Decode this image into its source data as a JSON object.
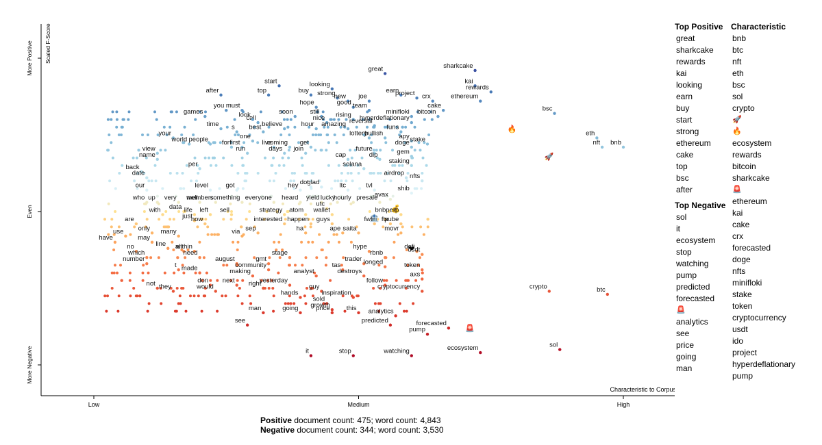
{
  "chart_data": {
    "type": "scatter",
    "y_axis_title": "Scaled F-Score",
    "y_ticks": [
      "More Positive",
      "Even",
      "More Negative"
    ],
    "x_axis_title": "Characteristic to Corpus",
    "x_ticks": [
      "Low",
      "Medium",
      "High"
    ],
    "xlim": [
      -0.2,
      1.2
    ],
    "ylim": [
      -0.2,
      1.05
    ],
    "color_scale": {
      "low": "#a50026",
      "mid": "#ffffbf",
      "high": "#313695"
    },
    "labeled_points": [
      {
        "term": "sharkcake",
        "x": 0.72,
        "y": 0.96
      },
      {
        "term": "kai",
        "x": 0.72,
        "y": 0.91
      },
      {
        "term": "rewards",
        "x": 0.75,
        "y": 0.89
      },
      {
        "term": "ethereum",
        "x": 0.73,
        "y": 0.86
      },
      {
        "term": "bsc",
        "x": 0.87,
        "y": 0.82
      },
      {
        "term": "🔥",
        "x": 0.79,
        "y": 0.77
      },
      {
        "term": "eth",
        "x": 0.95,
        "y": 0.74
      },
      {
        "term": "nft",
        "x": 0.96,
        "y": 0.71
      },
      {
        "term": "🚀",
        "x": 0.86,
        "y": 0.68
      },
      {
        "term": "bnb",
        "x": 1.0,
        "y": 0.71
      },
      {
        "term": "great",
        "x": 0.55,
        "y": 0.95
      },
      {
        "term": "start",
        "x": 0.35,
        "y": 0.91
      },
      {
        "term": "top",
        "x": 0.33,
        "y": 0.88
      },
      {
        "term": "after",
        "x": 0.24,
        "y": 0.88
      },
      {
        "term": "looking",
        "x": 0.45,
        "y": 0.9
      },
      {
        "term": "buy",
        "x": 0.41,
        "y": 0.88
      },
      {
        "term": "strong",
        "x": 0.46,
        "y": 0.87
      },
      {
        "term": "new",
        "x": 0.48,
        "y": 0.86
      },
      {
        "term": "earn",
        "x": 0.58,
        "y": 0.88
      },
      {
        "term": "project",
        "x": 0.61,
        "y": 0.87
      },
      {
        "term": "joe",
        "x": 0.52,
        "y": 0.86
      },
      {
        "term": "crx",
        "x": 0.64,
        "y": 0.86
      },
      {
        "term": "you",
        "x": 0.25,
        "y": 0.83
      },
      {
        "term": "must",
        "x": 0.28,
        "y": 0.83
      },
      {
        "term": "hope",
        "x": 0.42,
        "y": 0.84
      },
      {
        "term": "good",
        "x": 0.49,
        "y": 0.84
      },
      {
        "term": "team",
        "x": 0.52,
        "y": 0.83
      },
      {
        "term": "cake",
        "x": 0.66,
        "y": 0.83
      },
      {
        "term": "games",
        "x": 0.21,
        "y": 0.81
      },
      {
        "term": "call",
        "x": 0.31,
        "y": 0.79
      },
      {
        "term": "look",
        "x": 0.3,
        "y": 0.8
      },
      {
        "term": "soon",
        "x": 0.38,
        "y": 0.81
      },
      {
        "term": "still",
        "x": 0.43,
        "y": 0.81
      },
      {
        "term": "rising",
        "x": 0.49,
        "y": 0.8
      },
      {
        "term": "minifloki",
        "x": 0.6,
        "y": 0.81
      },
      {
        "term": "bitcoin",
        "x": 0.65,
        "y": 0.81
      },
      {
        "term": "nice",
        "x": 0.44,
        "y": 0.79
      },
      {
        "term": "hyperdeflationary",
        "x": 0.6,
        "y": 0.79
      },
      {
        "term": "time",
        "x": 0.24,
        "y": 0.77
      },
      {
        "term": "s",
        "x": 0.27,
        "y": 0.76
      },
      {
        "term": "best",
        "x": 0.32,
        "y": 0.76
      },
      {
        "term": "believe",
        "x": 0.36,
        "y": 0.77
      },
      {
        "term": "hour",
        "x": 0.42,
        "y": 0.77
      },
      {
        "term": "amazing",
        "x": 0.48,
        "y": 0.77
      },
      {
        "term": "reversal",
        "x": 0.53,
        "y": 0.78
      },
      {
        "term": "funs",
        "x": 0.58,
        "y": 0.76
      },
      {
        "term": "your",
        "x": 0.15,
        "y": 0.74
      },
      {
        "term": "one",
        "x": 0.3,
        "y": 0.73
      },
      {
        "term": "lottery",
        "x": 0.52,
        "y": 0.74
      },
      {
        "term": "bullish",
        "x": 0.55,
        "y": 0.74
      },
      {
        "term": "apy",
        "x": 0.6,
        "y": 0.73
      },
      {
        "term": "world",
        "x": 0.18,
        "y": 0.72
      },
      {
        "term": "people",
        "x": 0.22,
        "y": 0.72
      },
      {
        "term": "for",
        "x": 0.26,
        "y": 0.71
      },
      {
        "term": "first",
        "x": 0.28,
        "y": 0.71
      },
      {
        "term": "live",
        "x": 0.34,
        "y": 0.71
      },
      {
        "term": "coming",
        "x": 0.37,
        "y": 0.71
      },
      {
        "term": "get",
        "x": 0.41,
        "y": 0.71
      },
      {
        "term": "doge",
        "x": 0.6,
        "y": 0.71
      },
      {
        "term": "stake",
        "x": 0.63,
        "y": 0.72
      },
      {
        "term": "view",
        "x": 0.12,
        "y": 0.69
      },
      {
        "term": "run",
        "x": 0.29,
        "y": 0.69
      },
      {
        "term": "days",
        "x": 0.36,
        "y": 0.69
      },
      {
        "term": "join",
        "x": 0.4,
        "y": 0.69
      },
      {
        "term": "future",
        "x": 0.53,
        "y": 0.69
      },
      {
        "term": "gem",
        "x": 0.6,
        "y": 0.68
      },
      {
        "term": "name",
        "x": 0.12,
        "y": 0.67
      },
      {
        "term": "cap",
        "x": 0.48,
        "y": 0.67
      },
      {
        "term": "dip",
        "x": 0.54,
        "y": 0.67
      },
      {
        "term": "staking",
        "x": 0.6,
        "y": 0.65
      },
      {
        "term": "back",
        "x": 0.09,
        "y": 0.63
      },
      {
        "term": "per",
        "x": 0.2,
        "y": 0.64
      },
      {
        "term": "solana",
        "x": 0.51,
        "y": 0.64
      },
      {
        "term": "date",
        "x": 0.1,
        "y": 0.61
      },
      {
        "term": "airdrop",
        "x": 0.59,
        "y": 0.61
      },
      {
        "term": "nfts",
        "x": 0.62,
        "y": 0.6
      },
      {
        "term": "glad",
        "x": 0.43,
        "y": 0.58
      },
      {
        "term": "hey",
        "x": 0.39,
        "y": 0.57
      },
      {
        "term": "dot",
        "x": 0.41,
        "y": 0.58
      },
      {
        "term": "ltc",
        "x": 0.48,
        "y": 0.57
      },
      {
        "term": "tvl",
        "x": 0.53,
        "y": 0.57
      },
      {
        "term": "our",
        "x": 0.1,
        "y": 0.57
      },
      {
        "term": "level",
        "x": 0.22,
        "y": 0.57
      },
      {
        "term": "got",
        "x": 0.27,
        "y": 0.57
      },
      {
        "term": "shib",
        "x": 0.6,
        "y": 0.56
      },
      {
        "term": "avax",
        "x": 0.56,
        "y": 0.54
      },
      {
        "term": "who",
        "x": 0.1,
        "y": 0.53
      },
      {
        "term": "up",
        "x": 0.12,
        "y": 0.53
      },
      {
        "term": "very",
        "x": 0.16,
        "y": 0.53
      },
      {
        "term": "well",
        "x": 0.2,
        "y": 0.53
      },
      {
        "term": "members",
        "x": 0.23,
        "y": 0.53
      },
      {
        "term": "something",
        "x": 0.28,
        "y": 0.53
      },
      {
        "term": "everyone",
        "x": 0.34,
        "y": 0.53
      },
      {
        "term": "heard",
        "x": 0.39,
        "y": 0.53
      },
      {
        "term": "yield",
        "x": 0.43,
        "y": 0.53
      },
      {
        "term": "lucky",
        "x": 0.46,
        "y": 0.53
      },
      {
        "term": "hourly",
        "x": 0.49,
        "y": 0.53
      },
      {
        "term": "presale",
        "x": 0.54,
        "y": 0.53
      },
      {
        "term": "utc",
        "x": 0.44,
        "y": 0.51
      },
      {
        "term": "💰",
        "x": 0.57,
        "y": 0.51
      },
      {
        "term": "bnbperp",
        "x": 0.58,
        "y": 0.49
      },
      {
        "term": "with",
        "x": 0.13,
        "y": 0.49
      },
      {
        "term": "data",
        "x": 0.17,
        "y": 0.5
      },
      {
        "term": "life",
        "x": 0.19,
        "y": 0.49
      },
      {
        "term": "left",
        "x": 0.22,
        "y": 0.49
      },
      {
        "term": "sell",
        "x": 0.26,
        "y": 0.49
      },
      {
        "term": "strategy",
        "x": 0.36,
        "y": 0.49
      },
      {
        "term": "atom",
        "x": 0.4,
        "y": 0.49
      },
      {
        "term": "wallet",
        "x": 0.45,
        "y": 0.49
      },
      {
        "term": "🏦",
        "x": 0.53,
        "y": 0.48
      },
      {
        "term": "just",
        "x": 0.19,
        "y": 0.47
      },
      {
        "term": "now",
        "x": 0.21,
        "y": 0.46
      },
      {
        "term": "interested",
        "x": 0.36,
        "y": 0.46
      },
      {
        "term": "happen",
        "x": 0.41,
        "y": 0.46
      },
      {
        "term": "guys",
        "x": 0.45,
        "y": 0.46
      },
      {
        "term": "fwt",
        "x": 0.53,
        "y": 0.46
      },
      {
        "term": "ftx",
        "x": 0.56,
        "y": 0.46
      },
      {
        "term": "pube",
        "x": 0.58,
        "y": 0.46
      },
      {
        "term": "are",
        "x": 0.08,
        "y": 0.46
      },
      {
        "term": "only",
        "x": 0.11,
        "y": 0.43
      },
      {
        "term": "sep",
        "x": 0.31,
        "y": 0.43
      },
      {
        "term": "ha",
        "x": 0.4,
        "y": 0.43
      },
      {
        "term": "ape",
        "x": 0.47,
        "y": 0.43
      },
      {
        "term": "saita",
        "x": 0.5,
        "y": 0.43
      },
      {
        "term": "movr",
        "x": 0.58,
        "y": 0.43
      },
      {
        "term": "use",
        "x": 0.06,
        "y": 0.42
      },
      {
        "term": "many",
        "x": 0.16,
        "y": 0.42
      },
      {
        "term": "via",
        "x": 0.28,
        "y": 0.42
      },
      {
        "term": "have",
        "x": 0.04,
        "y": 0.4
      },
      {
        "term": "may",
        "x": 0.11,
        "y": 0.4
      },
      {
        "term": "❤",
        "x": 0.6,
        "y": 0.38
      },
      {
        "term": "line",
        "x": 0.14,
        "y": 0.38
      },
      {
        "term": "no",
        "x": 0.08,
        "y": 0.37
      },
      {
        "term": "all",
        "x": 0.17,
        "y": 0.37
      },
      {
        "term": "within",
        "x": 0.19,
        "y": 0.37
      },
      {
        "term": "hype",
        "x": 0.52,
        "y": 0.37
      },
      {
        "term": "defi",
        "x": 0.61,
        "y": 0.37
      },
      {
        "term": "which",
        "x": 0.1,
        "y": 0.35
      },
      {
        "term": "need",
        "x": 0.2,
        "y": 0.35
      },
      {
        "term": "stage",
        "x": 0.37,
        "y": 0.35
      },
      {
        "term": "rbnb",
        "x": 0.55,
        "y": 0.35
      },
      {
        "term": "usdt",
        "x": 0.62,
        "y": 0.36
      },
      {
        "term": "number",
        "x": 0.1,
        "y": 0.33
      },
      {
        "term": "august",
        "x": 0.27,
        "y": 0.33
      },
      {
        "term": "gmt",
        "x": 0.33,
        "y": 0.33
      },
      {
        "term": "trader",
        "x": 0.51,
        "y": 0.33
      },
      {
        "term": "longed",
        "x": 0.55,
        "y": 0.32
      },
      {
        "term": "t",
        "x": 0.16,
        "y": 0.31
      },
      {
        "term": "community",
        "x": 0.33,
        "y": 0.31
      },
      {
        "term": "tas",
        "x": 0.47,
        "y": 0.31
      },
      {
        "term": "token",
        "x": 0.62,
        "y": 0.31
      },
      {
        "term": "made",
        "x": 0.2,
        "y": 0.3
      },
      {
        "term": "making",
        "x": 0.3,
        "y": 0.29
      },
      {
        "term": "analyst",
        "x": 0.42,
        "y": 0.29
      },
      {
        "term": "destroys",
        "x": 0.51,
        "y": 0.29
      },
      {
        "term": "axs",
        "x": 0.62,
        "y": 0.28
      },
      {
        "term": "don",
        "x": 0.22,
        "y": 0.26
      },
      {
        "term": "next",
        "x": 0.27,
        "y": 0.26
      },
      {
        "term": "right",
        "x": 0.32,
        "y": 0.25
      },
      {
        "term": "yesterday",
        "x": 0.37,
        "y": 0.26
      },
      {
        "term": "follow",
        "x": 0.55,
        "y": 0.26
      },
      {
        "term": "not",
        "x": 0.12,
        "y": 0.25
      },
      {
        "term": "cryptocurrency",
        "x": 0.62,
        "y": 0.24
      },
      {
        "term": "guy",
        "x": 0.43,
        "y": 0.24
      },
      {
        "term": "would",
        "x": 0.23,
        "y": 0.24
      },
      {
        "term": "they",
        "x": 0.15,
        "y": 0.24
      },
      {
        "term": "hands",
        "x": 0.39,
        "y": 0.22
      },
      {
        "term": "inspiration",
        "x": 0.49,
        "y": 0.22
      },
      {
        "term": "crypto",
        "x": 0.86,
        "y": 0.24
      },
      {
        "term": "btc",
        "x": 0.97,
        "y": 0.23
      },
      {
        "term": "sold",
        "x": 0.44,
        "y": 0.2
      },
      {
        "term": "growth",
        "x": 0.45,
        "y": 0.18
      },
      {
        "term": "price",
        "x": 0.45,
        "y": 0.17
      },
      {
        "term": "this",
        "x": 0.5,
        "y": 0.17
      },
      {
        "term": "analytics",
        "x": 0.57,
        "y": 0.16
      },
      {
        "term": "man",
        "x": 0.32,
        "y": 0.17
      },
      {
        "term": "going",
        "x": 0.39,
        "y": 0.17
      },
      {
        "term": "predicted",
        "x": 0.56,
        "y": 0.13
      },
      {
        "term": "forecasted",
        "x": 0.67,
        "y": 0.12
      },
      {
        "term": "🚨",
        "x": 0.71,
        "y": 0.12
      },
      {
        "term": "see",
        "x": 0.29,
        "y": 0.13
      },
      {
        "term": "pump",
        "x": 0.63,
        "y": 0.1
      },
      {
        "term": "it",
        "x": 0.41,
        "y": 0.03
      },
      {
        "term": "stop",
        "x": 0.49,
        "y": 0.03
      },
      {
        "term": "watching",
        "x": 0.6,
        "y": 0.03
      },
      {
        "term": "ecosystem",
        "x": 0.73,
        "y": 0.04
      },
      {
        "term": "sol",
        "x": 0.88,
        "y": 0.05
      }
    ]
  },
  "side": {
    "top_positive_header": "Top Positive",
    "top_positive": [
      "great",
      "sharkcake",
      "rewards",
      "kai",
      "looking",
      "earn",
      "buy",
      "start",
      "strong",
      "ethereum",
      "cake",
      "top",
      "bsc",
      "after"
    ],
    "top_negative_header": "Top Negative",
    "top_negative": [
      "sol",
      "it",
      "ecosystem",
      "stop",
      "watching",
      "pump",
      "predicted",
      "forecasted",
      "🚨",
      "analytics",
      "see",
      "price",
      "going",
      "man"
    ],
    "characteristic_header": "Characteristic",
    "characteristic": [
      "bnb",
      "btc",
      "nft",
      "eth",
      "bsc",
      "sol",
      "crypto",
      "🚀",
      "🔥",
      "ecosystem",
      "rewards",
      "bitcoin",
      "sharkcake",
      "🚨",
      "ethereum",
      "kai",
      "cake",
      "crx",
      "forecasted",
      "doge",
      "nfts",
      "minifloki",
      "stake",
      "token",
      "cryptocurrency",
      "usdt",
      "ido",
      "project",
      "hyperdeflationary",
      "pump"
    ]
  },
  "footer": {
    "pos_label": "Positive",
    "pos_text": " document count: 475; word count: 4,843",
    "neg_label": "Negative",
    "neg_text": " document count: 344; word count: 3,530"
  }
}
